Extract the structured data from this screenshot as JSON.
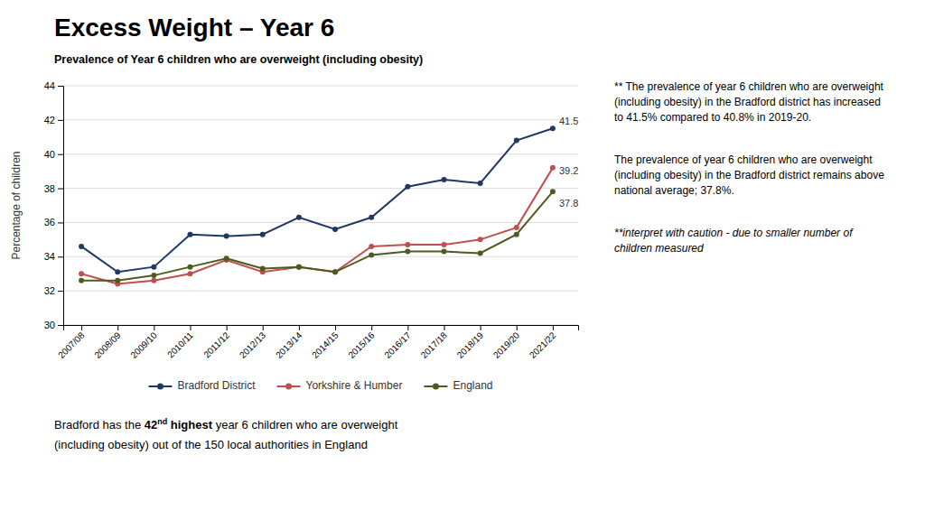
{
  "chart_data": {
    "type": "line",
    "title": "Excess Weight – Year 6",
    "subtitle": "Prevalence of Year 6 children who are overweight (including obesity)",
    "ylabel": "Percentage of children",
    "categories": [
      "2007/08",
      "2008/09",
      "2009/10",
      "2010/11",
      "2011/12",
      "2012/13",
      "2013/14",
      "2014/15",
      "2015/16",
      "2016/17",
      "2017/18",
      "2018/19",
      "2019/20",
      "2021/22"
    ],
    "series": [
      {
        "name": "Bradford District",
        "color": "#1F3864",
        "values": [
          34.6,
          33.1,
          33.4,
          35.3,
          35.2,
          35.3,
          36.3,
          35.6,
          36.3,
          38.1,
          38.5,
          38.3,
          40.8,
          41.5
        ]
      },
      {
        "name": "Yorkshire & Humber",
        "color": "#C0504D",
        "values": [
          33.0,
          32.4,
          32.6,
          33.0,
          33.8,
          33.1,
          33.4,
          33.1,
          34.6,
          34.7,
          34.7,
          35.0,
          35.7,
          39.2
        ]
      },
      {
        "name": "England",
        "color": "#4E5B1F",
        "values": [
          32.6,
          32.6,
          32.9,
          33.4,
          33.9,
          33.3,
          33.4,
          33.1,
          34.1,
          34.3,
          34.3,
          34.2,
          35.3,
          37.8
        ]
      }
    ],
    "ylim": [
      30,
      44
    ],
    "yticks": [
      30,
      32,
      34,
      36,
      38,
      40,
      42,
      44
    ],
    "grid": true,
    "legend": "bottom",
    "marker": "circle",
    "annotations": [
      {
        "text": "41.5",
        "x": "2021/22",
        "y": 41.5
      },
      {
        "text": "39.2",
        "x": "2021/22",
        "y": 39.2
      },
      {
        "text": "37.8",
        "x": "2021/22",
        "y": 37.8
      },
      {
        "lines": [
          "** The prevalence of year 6 children who are overweight",
          "(including obesity) in the Bradford district has increased",
          "to 41.5% compared to 40.8% in 2019-20."
        ]
      },
      {
        "lines": [
          "The prevalence of year 6 children who are overweight",
          "(including obesity) in the Bradford district remains above",
          "national average; 37.8%."
        ]
      },
      {
        "lines": [
          "**interpret with caution - due to smaller number of",
          "children measured"
        ]
      },
      {
        "lines": [
          [
            "Bradford has the ",
            "42",
            "nd",
            " highest",
            " year 6 children who are overweight"
          ],
          "(including obesity) out of the 150 local authorities in England"
        ]
      }
    ]
  }
}
